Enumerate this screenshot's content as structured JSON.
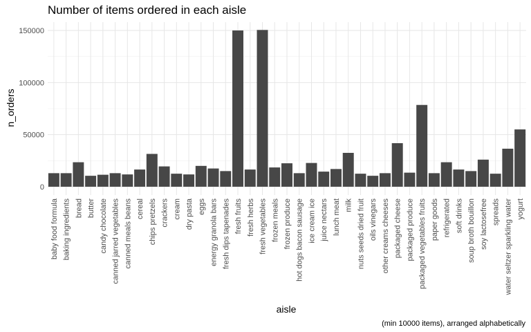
{
  "chart_data": {
    "type": "bar",
    "title": "Number of items ordered in each aisle",
    "xlabel": "aisle",
    "ylabel": "n_orders",
    "caption": "(min 10000 items), arranged alphabetically",
    "ylim": [
      -8000,
      158000
    ],
    "yticks": [
      0,
      50000,
      100000,
      150000
    ],
    "ytick_labels": [
      "0",
      "50000",
      "100000",
      "150000"
    ],
    "grid": true,
    "bar_color": "#474747",
    "categories": [
      "baby food formula",
      "baking ingredients",
      "bread",
      "butter",
      "candy chocolate",
      "canned jarred vegetables",
      "canned meals beans",
      "cereal",
      "chips pretzels",
      "crackers",
      "cream",
      "dry pasta",
      "eggs",
      "energy granola bars",
      "fresh dips tapenades",
      "fresh fruits",
      "fresh herbs",
      "fresh vegetables",
      "frozen meals",
      "frozen produce",
      "hot dogs bacon sausage",
      "ice cream ice",
      "juice nectars",
      "lunch meat",
      "milk",
      "nuts seeds dried fruit",
      "oils vinegars",
      "other creams cheeses",
      "packaged cheese",
      "packaged produce",
      "packaged vegetables fruits",
      "paper goods",
      "refrigerated",
      "soft drinks",
      "soup broth bouillon",
      "soy lactosefree",
      "spreads",
      "water seltzer sparkling water",
      "yogurt"
    ],
    "values": [
      13000,
      13000,
      23500,
      10500,
      11500,
      13000,
      11800,
      16500,
      31500,
      19500,
      12500,
      11800,
      20000,
      17500,
      15000,
      150000,
      16500,
      150500,
      18500,
      22500,
      13000,
      22800,
      14500,
      17000,
      32500,
      12500,
      10500,
      13000,
      41800,
      13500,
      78500,
      13000,
      23500,
      16500,
      15000,
      26000,
      12500,
      36500,
      55000
    ]
  }
}
